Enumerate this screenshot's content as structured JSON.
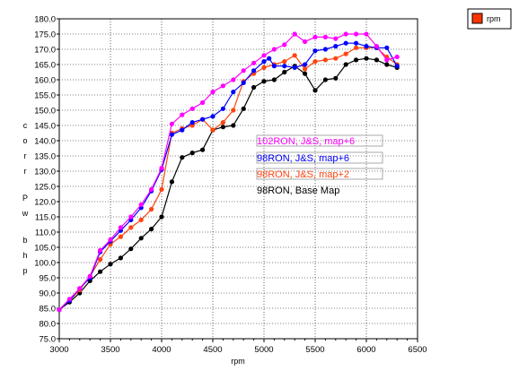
{
  "chart_data": {
    "type": "line",
    "xlabel": "rpm",
    "ylabel": "corr Pw bhp",
    "xlim": [
      3000,
      6500
    ],
    "ylim": [
      75.0,
      180.0
    ],
    "x_ticks": [
      3000,
      3500,
      4000,
      4500,
      5000,
      5500,
      6000,
      6500
    ],
    "y_ticks": [
      75.0,
      80.0,
      85.0,
      90.0,
      95.0,
      100.0,
      105.0,
      110.0,
      115.0,
      120.0,
      125.0,
      130.0,
      135.0,
      140.0,
      145.0,
      150.0,
      155.0,
      160.0,
      165.0,
      170.0,
      175.0,
      180.0
    ],
    "x_minor_ticks": [
      3100,
      3200,
      3300,
      3400,
      3600,
      3700,
      3800,
      3900,
      4100,
      4200,
      4300,
      4400,
      4600,
      4700,
      4800,
      4900,
      5100,
      5200,
      5300,
      5400,
      5600,
      5700,
      5800,
      5900,
      6100,
      6200,
      6300,
      6400
    ],
    "grid": true,
    "legend": {
      "entries": [
        "rpm"
      ],
      "position": "top-right",
      "color": "#ff3300"
    },
    "series": [
      {
        "name": "102RON, J&S, map+6",
        "color": "#ff00ff",
        "points": [
          [
            3000,
            84.5
          ],
          [
            3100,
            88
          ],
          [
            3200,
            91.5
          ],
          [
            3300,
            95.5
          ],
          [
            3400,
            104
          ],
          [
            3500,
            107.5
          ],
          [
            3600,
            111.5
          ],
          [
            3700,
            115
          ],
          [
            3800,
            119
          ],
          [
            3900,
            124
          ],
          [
            4000,
            131
          ],
          [
            4100,
            145.5
          ],
          [
            4200,
            148.5
          ],
          [
            4300,
            150.5
          ],
          [
            4400,
            152.5
          ],
          [
            4500,
            156
          ],
          [
            4600,
            158
          ],
          [
            4700,
            160
          ],
          [
            4800,
            163
          ],
          [
            4900,
            165.5
          ],
          [
            5000,
            168
          ],
          [
            5100,
            170
          ],
          [
            5200,
            171.5
          ],
          [
            5300,
            175
          ],
          [
            5400,
            172.5
          ],
          [
            5500,
            174
          ],
          [
            5600,
            174
          ],
          [
            5700,
            173.5
          ],
          [
            5800,
            175
          ],
          [
            5900,
            175
          ],
          [
            6000,
            175
          ],
          [
            6100,
            171
          ],
          [
            6200,
            166.5
          ],
          [
            6300,
            167.5
          ]
        ]
      },
      {
        "name": "98RON, J&S, map+6",
        "color": "#0000ff",
        "points": [
          [
            3000,
            84.5
          ],
          [
            3100,
            87.5
          ],
          [
            3200,
            91.5
          ],
          [
            3300,
            95
          ],
          [
            3400,
            103.5
          ],
          [
            3500,
            107
          ],
          [
            3600,
            110.5
          ],
          [
            3700,
            114
          ],
          [
            3800,
            118
          ],
          [
            3900,
            123.5
          ],
          [
            4000,
            130.5
          ],
          [
            4100,
            142
          ],
          [
            4200,
            143.5
          ],
          [
            4300,
            146
          ],
          [
            4400,
            147
          ],
          [
            4500,
            148
          ],
          [
            4600,
            150.5
          ],
          [
            4700,
            156
          ],
          [
            4800,
            159
          ],
          [
            4900,
            163
          ],
          [
            5000,
            166
          ],
          [
            5050,
            167
          ],
          [
            5100,
            164.5
          ],
          [
            5200,
            164.5
          ],
          [
            5300,
            164
          ],
          [
            5400,
            165
          ],
          [
            5500,
            169.5
          ],
          [
            5600,
            170
          ],
          [
            5700,
            171
          ],
          [
            5800,
            172
          ],
          [
            5900,
            172
          ],
          [
            6000,
            171
          ],
          [
            6100,
            170.5
          ],
          [
            6200,
            170.5
          ],
          [
            6300,
            164.5
          ]
        ]
      },
      {
        "name": "98RON, J&S, map+2",
        "color": "#ff4411",
        "points": [
          [
            3000,
            84.5
          ],
          [
            3100,
            87.5
          ],
          [
            3200,
            91
          ],
          [
            3300,
            95.5
          ],
          [
            3400,
            101
          ],
          [
            3500,
            106
          ],
          [
            3600,
            108.5
          ],
          [
            3700,
            111.5
          ],
          [
            3800,
            114
          ],
          [
            3900,
            117.5
          ],
          [
            4000,
            124
          ],
          [
            4100,
            142.5
          ],
          [
            4200,
            144
          ],
          [
            4300,
            145
          ],
          [
            4400,
            147
          ],
          [
            4500,
            143.5
          ],
          [
            4600,
            146
          ],
          [
            4700,
            150
          ],
          [
            4800,
            159.5
          ],
          [
            4900,
            162
          ],
          [
            5000,
            164
          ],
          [
            5100,
            165
          ],
          [
            5200,
            166
          ],
          [
            5300,
            168
          ],
          [
            5400,
            163.5
          ],
          [
            5500,
            166
          ],
          [
            5600,
            166.5
          ],
          [
            5700,
            167
          ],
          [
            5800,
            168.5
          ],
          [
            5900,
            170.5
          ],
          [
            6000,
            170.5
          ],
          [
            6100,
            170.5
          ],
          [
            6200,
            167.5
          ],
          [
            6300,
            165
          ]
        ]
      },
      {
        "name": "98RON, Base Map",
        "color": "#000000",
        "points": [
          [
            3000,
            84.5
          ],
          [
            3100,
            87
          ],
          [
            3200,
            90
          ],
          [
            3300,
            94
          ],
          [
            3400,
            97
          ],
          [
            3500,
            99.5
          ],
          [
            3600,
            101.5
          ],
          [
            3700,
            104.5
          ],
          [
            3800,
            108
          ],
          [
            3900,
            111
          ],
          [
            4000,
            115
          ],
          [
            4100,
            126.5
          ],
          [
            4200,
            134.5
          ],
          [
            4300,
            136
          ],
          [
            4400,
            137
          ],
          [
            4500,
            143.5
          ],
          [
            4600,
            144.5
          ],
          [
            4700,
            145
          ],
          [
            4800,
            150.5
          ],
          [
            4900,
            157.5
          ],
          [
            5000,
            159.5
          ],
          [
            5100,
            160
          ],
          [
            5200,
            162.5
          ],
          [
            5300,
            164.5
          ],
          [
            5400,
            162
          ],
          [
            5500,
            156.5
          ],
          [
            5600,
            160
          ],
          [
            5700,
            160.5
          ],
          [
            5800,
            165
          ],
          [
            5900,
            166.5
          ],
          [
            6000,
            167
          ],
          [
            6100,
            166.5
          ],
          [
            6200,
            165
          ],
          [
            6300,
            164
          ]
        ]
      }
    ]
  }
}
